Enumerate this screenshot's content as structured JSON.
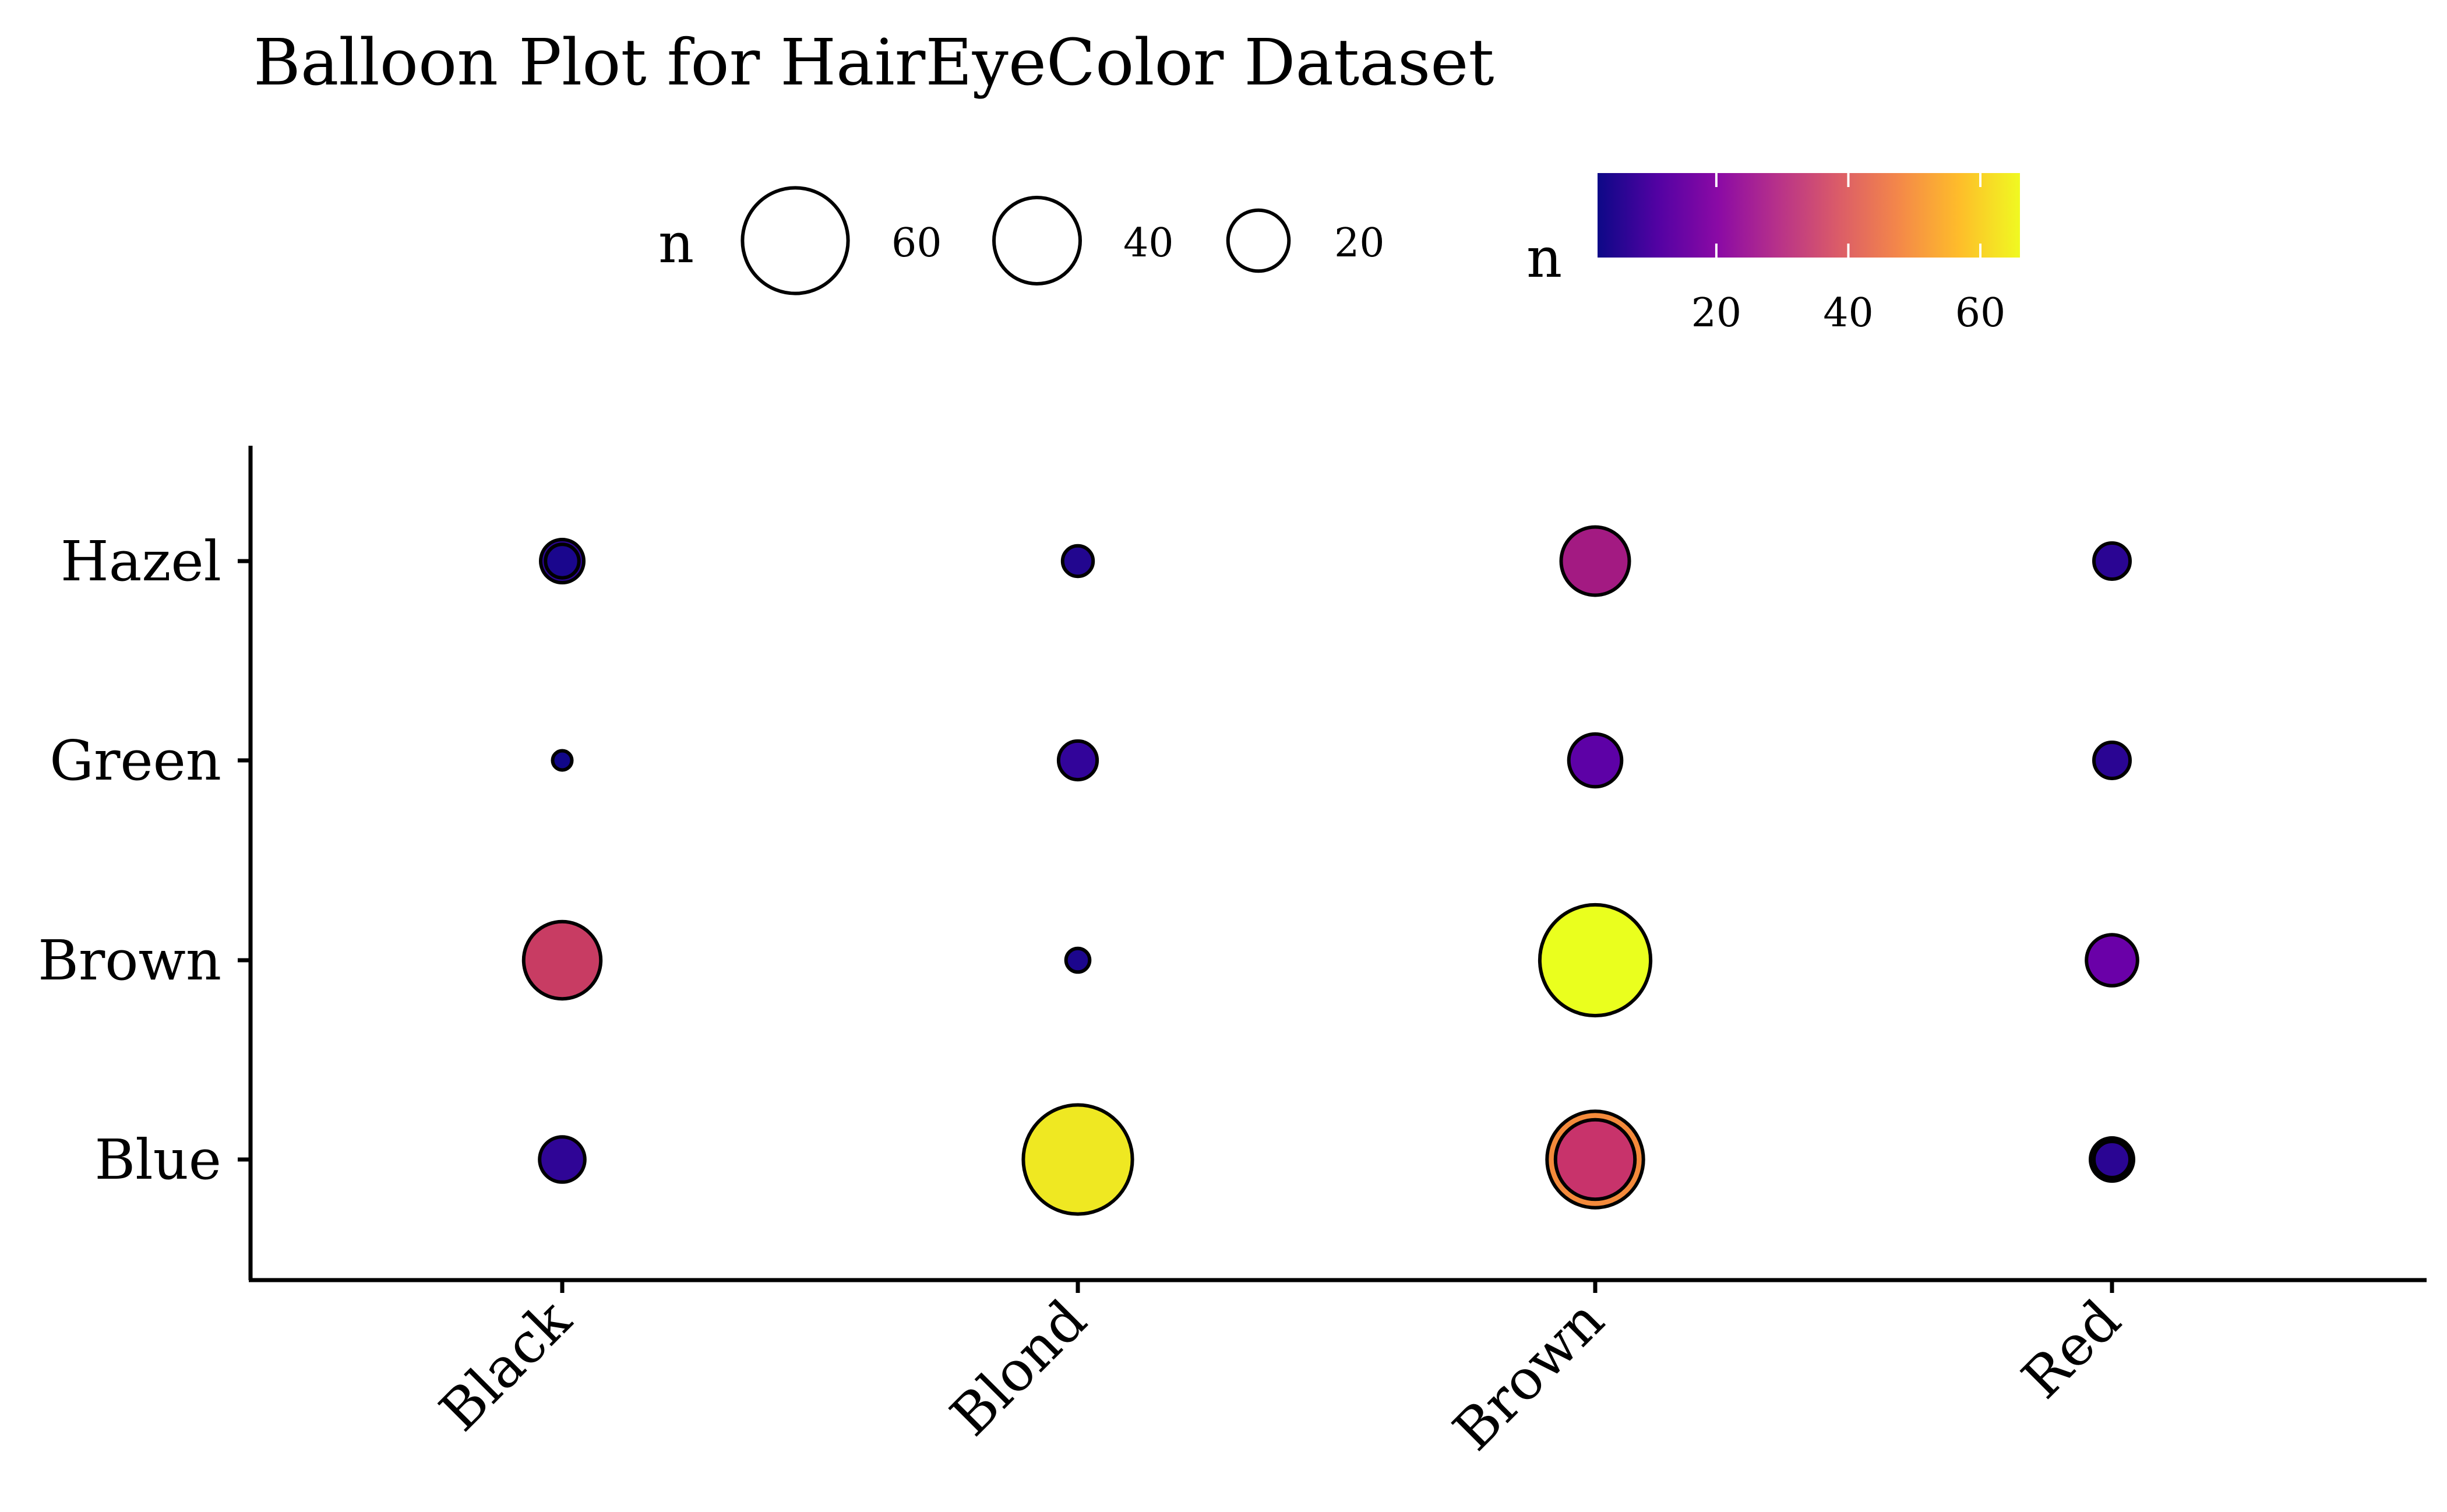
{
  "chart_data": {
    "type": "scatter",
    "title": "Balloon Plot for HairEyeColor Dataset",
    "xlabel": "",
    "ylabel": "",
    "x_categories": [
      "Black",
      "Blond",
      "Brown",
      "Red"
    ],
    "y_categories": [
      "Blue",
      "Brown",
      "Green",
      "Hazel"
    ],
    "size_domain": [
      2,
      66
    ],
    "color_domain": [
      2,
      66
    ],
    "points": [
      {
        "hair": "Black",
        "eye": "Hazel",
        "n": 10,
        "fill": "#2c0594",
        "extra_rings": [
          {
            "n": 6,
            "fill": "#1a068d"
          }
        ]
      },
      {
        "hair": "Blond",
        "eye": "Hazel",
        "n": 5,
        "fill": "#22068f"
      },
      {
        "hair": "Brown",
        "eye": "Hazel",
        "n": 25,
        "fill": "#a31a82"
      },
      {
        "hair": "Red",
        "eye": "Hazel",
        "n": 7,
        "fill": "#2a0593"
      },
      {
        "hair": "Black",
        "eye": "Green",
        "n": 2,
        "fill": "#110789"
      },
      {
        "hair": "Blond",
        "eye": "Green",
        "n": 8,
        "fill": "#32049a"
      },
      {
        "hair": "Brown",
        "eye": "Green",
        "n": 15,
        "fill": "#5d01a6"
      },
      {
        "hair": "Red",
        "eye": "Green",
        "n": 7,
        "fill": "#2a0593"
      },
      {
        "hair": "Black",
        "eye": "Brown",
        "n": 32,
        "fill": "#c83c63"
      },
      {
        "hair": "Blond",
        "eye": "Brown",
        "n": 3,
        "fill": "#1c068d"
      },
      {
        "hair": "Brown",
        "eye": "Brown",
        "n": 66,
        "fill": "#eaff1e"
      },
      {
        "hair": "Red",
        "eye": "Brown",
        "n": 14,
        "fill": "#6a00a8"
      },
      {
        "hair": "Black",
        "eye": "Blue",
        "n": 11,
        "fill": "#2f0596"
      },
      {
        "hair": "Blond",
        "eye": "Blue",
        "n": 64,
        "fill": "#efe822"
      },
      {
        "hair": "Brown",
        "eye": "Blue",
        "n": 50,
        "fill": "#f48a3b",
        "extra_rings": [
          {
            "n": 34,
            "fill": "#c8336b"
          }
        ]
      },
      {
        "hair": "Red",
        "eye": "Blue",
        "n": 10,
        "fill": "#1a068d",
        "extra_rings": [
          {
            "n": 7,
            "fill": "#2a0593"
          }
        ]
      }
    ],
    "size_legend": {
      "title": "n",
      "labels": [
        "60",
        "40",
        "20"
      ],
      "values": [
        60,
        40,
        20
      ]
    },
    "color_legend": {
      "title": "n",
      "labels": [
        "20",
        "40",
        "60"
      ],
      "values": [
        20,
        40,
        60
      ],
      "colors": [
        "#0d0887",
        "#5302a3",
        "#8b0aa5",
        "#b83289",
        "#db5c68",
        "#f48849",
        "#febd2a",
        "#f0f921"
      ]
    }
  }
}
